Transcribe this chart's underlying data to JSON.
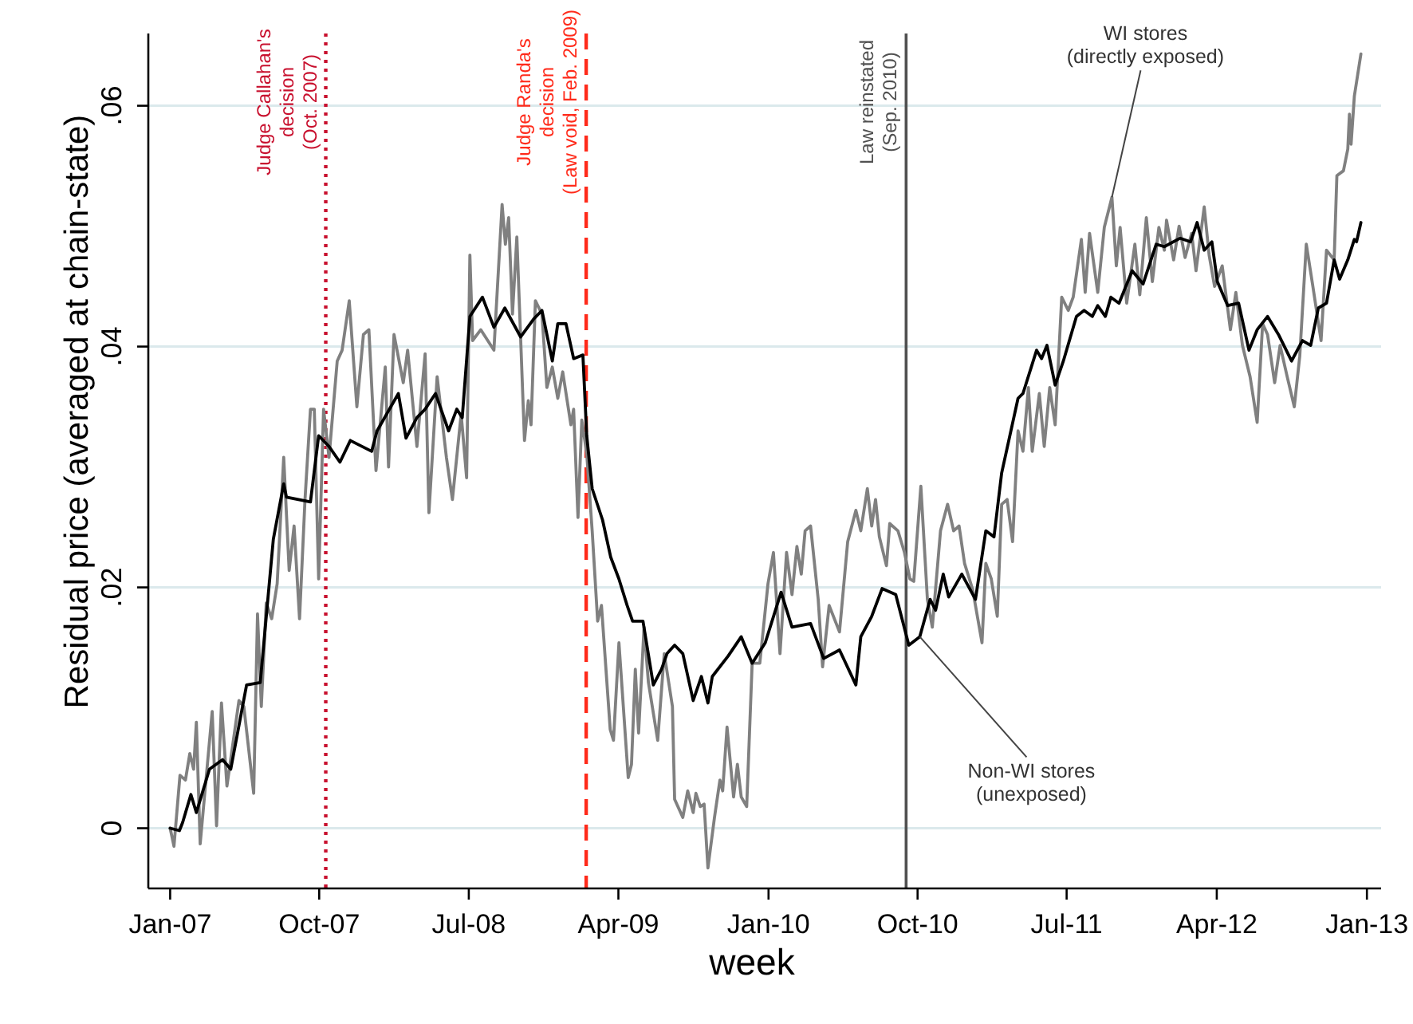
{
  "chart_data": {
    "type": "line",
    "xlabel": "week",
    "ylabel": "Residual price (averaged at chain-state)",
    "xlim": [
      "2006-11-22",
      "2013-01-27"
    ],
    "xticks": [
      {
        "value": "2007-01-01",
        "label": "Jan-07"
      },
      {
        "value": "2007-10-01",
        "label": "Oct-07"
      },
      {
        "value": "2008-07-01",
        "label": "Jul-08"
      },
      {
        "value": "2009-04-01",
        "label": "Apr-09"
      },
      {
        "value": "2010-01-01",
        "label": "Jan-10"
      },
      {
        "value": "2010-10-01",
        "label": "Oct-10"
      },
      {
        "value": "2011-07-01",
        "label": "Jul-11"
      },
      {
        "value": "2012-04-01",
        "label": "Apr-12"
      },
      {
        "value": "2013-01-01",
        "label": "Jan-13"
      }
    ],
    "ylim": [
      -0.005,
      0.066
    ],
    "yticks": [
      0,
      {
        "value": 0.02,
        "label": ".02"
      },
      {
        "value": 0.04,
        "label": ".04"
      },
      {
        "value": 0.06,
        "label": ".06"
      }
    ],
    "grid": "y",
    "series": [
      {
        "color": "#808080",
        "x": [
          "2007-01-01",
          "2007-01-08",
          "2007-01-19",
          "2007-01-29",
          "2007-02-06",
          "2007-02-13",
          "2007-02-18",
          "2007-02-25",
          "2007-03-19",
          "2007-03-27",
          "2007-04-05",
          "2007-04-15",
          "2007-05-07",
          "2007-05-16",
          "2007-06-03",
          "2007-06-10",
          "2007-06-17",
          "2007-06-26",
          "2007-07-06",
          "2007-07-16",
          "2007-07-28",
          "2007-08-07",
          "2007-08-16",
          "2007-08-26",
          "2007-09-05",
          "2007-09-15",
          "2007-09-22",
          "2007-09-30",
          "2007-10-09",
          "2007-10-19",
          "2007-11-03",
          "2007-11-12",
          "2007-11-25",
          "2007-12-09",
          "2007-12-21",
          "2007-12-31",
          "2008-01-13",
          "2008-01-30",
          "2008-02-05",
          "2008-02-15",
          "2008-03-03",
          "2008-03-11",
          "2008-03-28",
          "2008-04-12",
          "2008-04-19",
          "2008-05-04",
          "2008-05-21",
          "2008-06-01",
          "2008-06-17",
          "2008-06-27",
          "2008-07-03",
          "2008-07-08",
          "2008-07-23",
          "2008-08-16",
          "2008-08-31",
          "2008-09-06",
          "2008-09-12",
          "2008-09-19",
          "2008-09-27",
          "2008-10-11",
          "2008-10-18",
          "2008-10-23",
          "2008-10-31",
          "2008-11-12",
          "2008-11-21",
          "2008-12-01",
          "2008-12-11",
          "2008-12-20",
          "2009-01-04",
          "2009-01-09",
          "2009-01-17",
          "2009-01-24",
          "2009-02-02",
          "2009-02-12",
          "2009-02-22",
          "2009-03-01",
          "2009-03-17",
          "2009-03-23",
          "2009-04-02",
          "2009-04-19",
          "2009-04-25",
          "2009-05-02",
          "2009-05-08",
          "2009-05-18",
          "2009-05-26",
          "2009-06-12",
          "2009-06-24",
          "2009-07-09",
          "2009-07-13",
          "2009-07-28",
          "2009-08-06",
          "2009-08-16",
          "2009-08-21",
          "2009-08-29",
          "2009-09-05",
          "2009-09-12",
          "2009-09-24",
          "2009-10-04",
          "2009-10-09",
          "2009-10-17",
          "2009-10-29",
          "2009-11-05",
          "2009-11-12",
          "2009-11-22",
          "2009-12-02",
          "2009-12-16",
          "2009-12-31",
          "2010-01-10",
          "2010-01-22",
          "2010-02-03",
          "2010-02-13",
          "2010-02-22",
          "2010-03-02",
          "2010-03-09",
          "2010-03-19",
          "2010-04-02",
          "2010-04-10",
          "2010-04-22",
          "2010-05-11",
          "2010-05-26",
          "2010-06-10",
          "2010-06-19",
          "2010-07-01",
          "2010-07-09",
          "2010-07-16",
          "2010-07-23",
          "2010-08-05",
          "2010-08-11",
          "2010-08-26",
          "2010-09-07",
          "2010-09-17",
          "2010-09-24",
          "2010-10-07",
          "2010-10-19",
          "2010-10-28",
          "2010-11-12",
          "2010-11-25",
          "2010-12-06",
          "2010-12-16",
          "2010-12-26",
          "2011-01-10",
          "2011-01-27",
          "2011-02-03",
          "2011-02-13",
          "2011-02-24",
          "2011-03-04",
          "2011-03-14",
          "2011-03-24",
          "2011-04-03",
          "2011-04-12",
          "2011-04-22",
          "2011-04-29",
          "2011-05-12",
          "2011-05-21",
          "2011-05-31",
          "2011-06-10",
          "2011-06-22",
          "2011-07-04",
          "2011-07-13",
          "2011-07-28",
          "2011-08-04",
          "2011-08-12",
          "2011-08-27",
          "2011-09-08",
          "2011-09-22",
          "2011-09-30",
          "2011-10-07",
          "2011-10-19",
          "2011-11-03",
          "2011-11-12",
          "2011-11-24",
          "2011-12-05",
          "2011-12-17",
          "2011-12-27",
          "2011-12-31",
          "2012-01-13",
          "2012-01-23",
          "2012-02-03",
          "2012-02-15",
          "2012-02-23",
          "2012-03-09",
          "2012-03-18",
          "2012-03-28",
          "2012-04-11",
          "2012-04-26",
          "2012-05-06",
          "2012-05-18",
          "2012-06-01",
          "2012-06-14",
          "2012-06-24",
          "2012-07-03",
          "2012-07-16",
          "2012-07-26",
          "2012-08-08",
          "2012-08-21",
          "2012-08-31",
          "2012-09-12",
          "2012-09-24",
          "2012-10-09",
          "2012-10-19",
          "2012-11-02",
          "2012-11-07",
          "2012-11-19",
          "2012-11-27",
          "2012-11-30",
          "2012-12-03",
          "2012-12-09",
          "2012-12-21"
        ],
        "values": [
          0,
          -0.0015,
          0.0044,
          0.004,
          0.0062,
          0.0049,
          0.0088,
          -0.0013,
          0.0097,
          0.0002,
          0.0104,
          0.0035,
          0.0106,
          0.0101,
          0.0029,
          0.0178,
          0.0101,
          0.0187,
          0.0174,
          0.0203,
          0.0308,
          0.0214,
          0.0251,
          0.0174,
          0.0273,
          0.0348,
          0.0348,
          0.0207,
          0.0348,
          0.0308,
          0.0388,
          0.0397,
          0.0438,
          0.035,
          0.041,
          0.0414,
          0.0297,
          0.0383,
          0.03,
          0.041,
          0.037,
          0.0397,
          0.0317,
          0.0394,
          0.0262,
          0.0375,
          0.0308,
          0.0273,
          0.0344,
          0.0291,
          0.0476,
          0.0405,
          0.0414,
          0.0397,
          0.0518,
          0.0485,
          0.0507,
          0.0427,
          0.0491,
          0.0322,
          0.0355,
          0.0335,
          0.0438,
          0.0427,
          0.0366,
          0.0383,
          0.0357,
          0.0379,
          0.0335,
          0.0348,
          0.0258,
          0.0339,
          0.0311,
          0.0247,
          0.0172,
          0.0185,
          0.0082,
          0.0073,
          0.0154,
          0.0042,
          0.0053,
          0.0132,
          0.0079,
          0.0167,
          0.0121,
          0.0073,
          0.0145,
          0.0101,
          0.0024,
          0.0009,
          0.0031,
          0.0013,
          0.0029,
          0.0018,
          0.002,
          -0.0033,
          0.0009,
          0.004,
          0.0031,
          0.0084,
          0.0026,
          0.0053,
          0.0026,
          0.0018,
          0.0137,
          0.0137,
          0.0203,
          0.0229,
          0.0145,
          0.0229,
          0.0194,
          0.0234,
          0.0211,
          0.0247,
          0.0251,
          0.019,
          0.0134,
          0.0185,
          0.0163,
          0.0238,
          0.0264,
          0.0247,
          0.0282,
          0.0251,
          0.0273,
          0.0242,
          0.0218,
          0.0253,
          0.0247,
          0.0229,
          0.0207,
          0.0205,
          0.0284,
          0.019,
          0.0167,
          0.0247,
          0.0269,
          0.0247,
          0.0251,
          0.022,
          0.0198,
          0.0154,
          0.022,
          0.0207,
          0.0176,
          0.0269,
          0.0273,
          0.0238,
          0.033,
          0.0313,
          0.0366,
          0.0313,
          0.0361,
          0.0317,
          0.0366,
          0.0335,
          0.0441,
          0.043,
          0.0441,
          0.0489,
          0.0445,
          0.0494,
          0.0445,
          0.0499,
          0.0524,
          0.0467,
          0.0499,
          0.0436,
          0.0485,
          0.0443,
          0.0507,
          0.0454,
          0.0499,
          0.048,
          0.0505,
          0.0472,
          0.05,
          0.0474,
          0.0494,
          0.0463,
          0.0516,
          0.0476,
          0.045,
          0.0467,
          0.0414,
          0.0445,
          0.0401,
          0.0375,
          0.0337,
          0.0419,
          0.041,
          0.037,
          0.0401,
          0.0375,
          0.035,
          0.0392,
          0.0485,
          0.045,
          0.0405,
          0.048,
          0.0472,
          0.0542,
          0.0546,
          0.0564,
          0.0593,
          0.0568,
          0.0608,
          0.0643
        ]
      },
      {
        "color": "#000000",
        "x": [
          "2007-01-01",
          "2007-01-18",
          "2007-01-24",
          "2007-02-08",
          "2007-02-18",
          "2007-03-14",
          "2007-04-07",
          "2007-04-22",
          "2007-05-21",
          "2007-06-15",
          "2007-07-09",
          "2007-07-28",
          "2007-08-02",
          "2007-09-15",
          "2007-09-30",
          "2007-10-19",
          "2007-11-08",
          "2007-11-27",
          "2008-01-05",
          "2008-01-15",
          "2008-02-23",
          "2008-03-08",
          "2008-03-28",
          "2008-04-12",
          "2008-05-01",
          "2008-05-25",
          "2008-06-09",
          "2008-06-19",
          "2008-07-03",
          "2008-07-13",
          "2008-07-26",
          "2008-08-16",
          "2008-09-05",
          "2008-10-04",
          "2008-10-28",
          "2008-11-12",
          "2008-12-01",
          "2008-12-11",
          "2008-12-26",
          "2009-01-09",
          "2009-01-26",
          "2009-02-02",
          "2009-02-12",
          "2009-03-03",
          "2009-03-18",
          "2009-04-02",
          "2009-04-17",
          "2009-04-27",
          "2009-05-16",
          "2009-06-04",
          "2009-06-19",
          "2009-06-29",
          "2009-07-13",
          "2009-07-28",
          "2009-08-16",
          "2009-08-31",
          "2009-09-12",
          "2009-09-20",
          "2009-10-19",
          "2009-11-12",
          "2009-12-02",
          "2009-12-26",
          "2010-01-24",
          "2010-02-13",
          "2010-03-19",
          "2010-04-12",
          "2010-05-11",
          "2010-06-10",
          "2010-06-19",
          "2010-07-09",
          "2010-07-28",
          "2010-08-22",
          "2010-09-15",
          "2010-10-05",
          "2010-10-24",
          "2010-11-03",
          "2010-11-17",
          "2010-11-27",
          "2010-12-21",
          "2011-01-15",
          "2011-02-03",
          "2011-02-18",
          "2011-03-04",
          "2011-04-03",
          "2011-04-12",
          "2011-05-07",
          "2011-05-16",
          "2011-05-26",
          "2011-06-10",
          "2011-06-25",
          "2011-07-19",
          "2011-08-02",
          "2011-08-17",
          "2011-08-27",
          "2011-09-10",
          "2011-09-20",
          "2011-10-05",
          "2011-10-29",
          "2011-11-18",
          "2011-12-12",
          "2011-12-27",
          "2012-01-25",
          "2012-02-13",
          "2012-02-25",
          "2012-03-09",
          "2012-03-23",
          "2012-04-02",
          "2012-04-21",
          "2012-05-11",
          "2012-05-30",
          "2012-06-14",
          "2012-07-03",
          "2012-07-23",
          "2012-08-16",
          "2012-09-05",
          "2012-09-20",
          "2012-10-04",
          "2012-10-19",
          "2012-11-02",
          "2012-11-12",
          "2012-11-27",
          "2012-12-09",
          "2012-12-13",
          "2012-12-21"
        ],
        "values": [
          0,
          -0.0002,
          0.0005,
          0.0028,
          0.0013,
          0.0049,
          0.0057,
          0.0049,
          0.0119,
          0.0121,
          0.024,
          0.0286,
          0.0275,
          0.0271,
          0.0326,
          0.0317,
          0.0304,
          0.0322,
          0.0313,
          0.033,
          0.0361,
          0.0324,
          0.0341,
          0.0348,
          0.0361,
          0.033,
          0.0348,
          0.0341,
          0.0425,
          0.0432,
          0.0441,
          0.0416,
          0.0432,
          0.0408,
          0.0423,
          0.043,
          0.0388,
          0.0419,
          0.0419,
          0.039,
          0.0393,
          0.0326,
          0.0282,
          0.0256,
          0.0225,
          0.0207,
          0.0185,
          0.0172,
          0.0172,
          0.0119,
          0.0132,
          0.0145,
          0.0152,
          0.0145,
          0.0106,
          0.0126,
          0.0104,
          0.0126,
          0.0143,
          0.0159,
          0.0137,
          0.0154,
          0.0196,
          0.0167,
          0.017,
          0.0141,
          0.0148,
          0.0119,
          0.0159,
          0.0176,
          0.0199,
          0.0194,
          0.0152,
          0.0159,
          0.019,
          0.0181,
          0.0211,
          0.0192,
          0.0211,
          0.019,
          0.0247,
          0.0242,
          0.0295,
          0.0357,
          0.0361,
          0.0397,
          0.039,
          0.0401,
          0.0368,
          0.0388,
          0.0425,
          0.043,
          0.0425,
          0.0434,
          0.0425,
          0.0441,
          0.0436,
          0.0463,
          0.0452,
          0.0485,
          0.0483,
          0.049,
          0.0487,
          0.0503,
          0.048,
          0.0487,
          0.0454,
          0.0434,
          0.0436,
          0.0397,
          0.0414,
          0.0425,
          0.041,
          0.0388,
          0.0405,
          0.0401,
          0.0432,
          0.0436,
          0.0472,
          0.0456,
          0.0472,
          0.0489,
          0.0487,
          0.0503
        ]
      }
    ],
    "ref_lines": [
      {
        "axis": "x",
        "value": "2007-10-13",
        "label": "Judge Callahan's\ndecision\n(Oct. 2007)",
        "color": "#c8102e",
        "line_style": "dotted"
      },
      {
        "axis": "x",
        "value": "2009-02-01",
        "label": "Judge Randa's\ndecision\n(Law void, Feb. 2009)",
        "color": "#ff2a1a",
        "line_style": "dashed"
      },
      {
        "axis": "x",
        "value": "2010-09-10",
        "label": "Law reinstated\n(Sep. 2010)",
        "color": "#505050",
        "line_style": "solid"
      }
    ],
    "annotations": [
      {
        "text": "WI stores\n(directly exposed)",
        "x": "2011-09-22",
        "y": 0.0524
      },
      {
        "text": "Non-WI stores\n(unexposed)",
        "x": "2010-10-05",
        "y": 0.0159
      }
    ]
  }
}
